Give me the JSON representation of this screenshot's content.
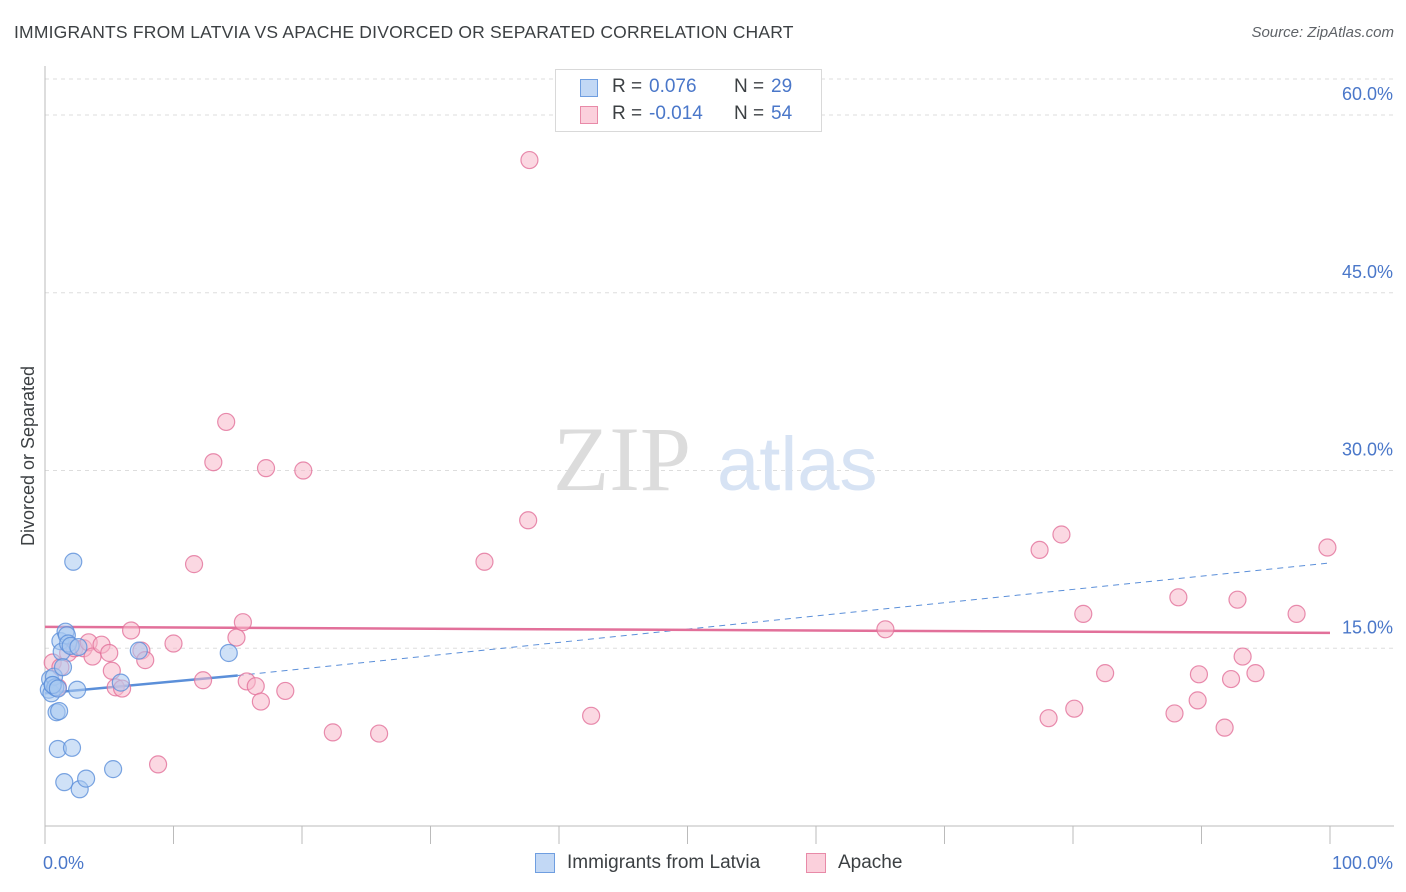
{
  "header": {
    "title": "IMMIGRANTS FROM LATVIA VS APACHE DIVORCED OR SEPARATED CORRELATION CHART",
    "source": "Source: ZipAtlas.com"
  },
  "watermark": {
    "zip": "ZIP",
    "atlas": "atlas"
  },
  "legend": {
    "rows": [
      {
        "r_label": "R =",
        "r_value": "0.076",
        "n_label": "N =",
        "n_value": "29",
        "color": "#a8c8f0"
      },
      {
        "r_label": "R =",
        "r_value": "-0.014",
        "n_label": "N =",
        "n_value": "54",
        "color": "#f7b8cb"
      }
    ]
  },
  "bottom_legend": [
    {
      "label": "Immigrants from Latvia",
      "color": "#a8c8f0"
    },
    {
      "label": "Apache",
      "color": "#f7b8cb"
    }
  ],
  "chart_data": {
    "type": "scatter",
    "title": "IMMIGRANTS FROM LATVIA VS APACHE DIVORCED OR SEPARATED CORRELATION CHART",
    "xlabel": "",
    "ylabel": "Divorced or Separated",
    "xlim": [
      0,
      100
    ],
    "ylim": [
      0,
      63.8
    ],
    "x_tick_labels": [
      "0.0%",
      "100.0%"
    ],
    "y_ticks": [
      15,
      30,
      45,
      60
    ],
    "y_tick_labels": [
      "15.0%",
      "30.0%",
      "45.0%",
      "60.0%"
    ],
    "grid": true,
    "legend_position": "top-center",
    "series": [
      {
        "name": "Immigrants from Latvia",
        "color": "#5b8fd9",
        "fill": "#a8c8f0",
        "points": [
          [
            0.3,
            11.5
          ],
          [
            0.4,
            12.4
          ],
          [
            0.5,
            11.2
          ],
          [
            0.6,
            11.9
          ],
          [
            0.7,
            12.6
          ],
          [
            0.8,
            11.7
          ],
          [
            0.9,
            9.6
          ],
          [
            1.0,
            6.5
          ],
          [
            1.1,
            9.7
          ],
          [
            1.2,
            15.6
          ],
          [
            1.3,
            14.7
          ],
          [
            1.4,
            13.4
          ],
          [
            1.5,
            3.7
          ],
          [
            1.6,
            16.4
          ],
          [
            1.7,
            16.1
          ],
          [
            1.8,
            15.4
          ],
          [
            2.0,
            15.2
          ],
          [
            2.1,
            6.6
          ],
          [
            2.2,
            22.3
          ],
          [
            2.5,
            11.5
          ],
          [
            2.6,
            15.1
          ],
          [
            2.7,
            3.1
          ],
          [
            3.2,
            4.0
          ],
          [
            5.3,
            4.8
          ],
          [
            5.9,
            12.1
          ],
          [
            7.3,
            14.8
          ],
          [
            14.3,
            14.6
          ],
          [
            0.6,
            11.9
          ],
          [
            1.0,
            11.6
          ]
        ],
        "trend_solid": {
          "x": [
            0,
            15
          ],
          "y": [
            11.2,
            12.7
          ]
        },
        "trend_dashed": {
          "x": [
            15,
            100
          ],
          "y": [
            12.7,
            22.2
          ]
        }
      },
      {
        "name": "Apache",
        "color": "#e2709a",
        "fill": "#f7b8cb",
        "points": [
          [
            0.6,
            13.8
          ],
          [
            1.0,
            11.7
          ],
          [
            1.2,
            13.4
          ],
          [
            1.8,
            14.6
          ],
          [
            2.3,
            15.0
          ],
          [
            3.0,
            15.0
          ],
          [
            3.4,
            15.5
          ],
          [
            3.7,
            14.3
          ],
          [
            4.4,
            15.3
          ],
          [
            5.0,
            14.6
          ],
          [
            5.2,
            13.1
          ],
          [
            5.5,
            11.7
          ],
          [
            6.0,
            11.6
          ],
          [
            6.7,
            16.5
          ],
          [
            7.5,
            14.8
          ],
          [
            7.8,
            14.0
          ],
          [
            8.8,
            5.2
          ],
          [
            10.0,
            15.4
          ],
          [
            11.6,
            22.1
          ],
          [
            12.3,
            12.3
          ],
          [
            13.1,
            30.7
          ],
          [
            14.1,
            34.1
          ],
          [
            14.9,
            15.9
          ],
          [
            15.4,
            17.2
          ],
          [
            15.7,
            12.2
          ],
          [
            16.4,
            11.8
          ],
          [
            16.8,
            10.5
          ],
          [
            17.2,
            30.2
          ],
          [
            18.7,
            11.4
          ],
          [
            20.1,
            30.0
          ],
          [
            22.4,
            7.9
          ],
          [
            26.0,
            7.8
          ],
          [
            34.2,
            22.3
          ],
          [
            37.6,
            25.8
          ],
          [
            37.7,
            56.2
          ],
          [
            42.5,
            9.3
          ],
          [
            65.4,
            16.6
          ],
          [
            77.4,
            23.3
          ],
          [
            78.1,
            9.1
          ],
          [
            79.1,
            24.6
          ],
          [
            80.1,
            9.9
          ],
          [
            80.8,
            17.9
          ],
          [
            82.5,
            12.9
          ],
          [
            87.9,
            9.5
          ],
          [
            88.2,
            19.3
          ],
          [
            89.7,
            10.6
          ],
          [
            89.8,
            12.8
          ],
          [
            91.8,
            8.3
          ],
          [
            92.3,
            12.4
          ],
          [
            93.2,
            14.3
          ],
          [
            94.2,
            12.9
          ],
          [
            97.4,
            17.9
          ],
          [
            99.8,
            23.5
          ],
          [
            92.8,
            19.1
          ]
        ],
        "trend_solid": {
          "x": [
            0,
            100
          ],
          "y": [
            16.8,
            16.3
          ]
        }
      }
    ]
  }
}
